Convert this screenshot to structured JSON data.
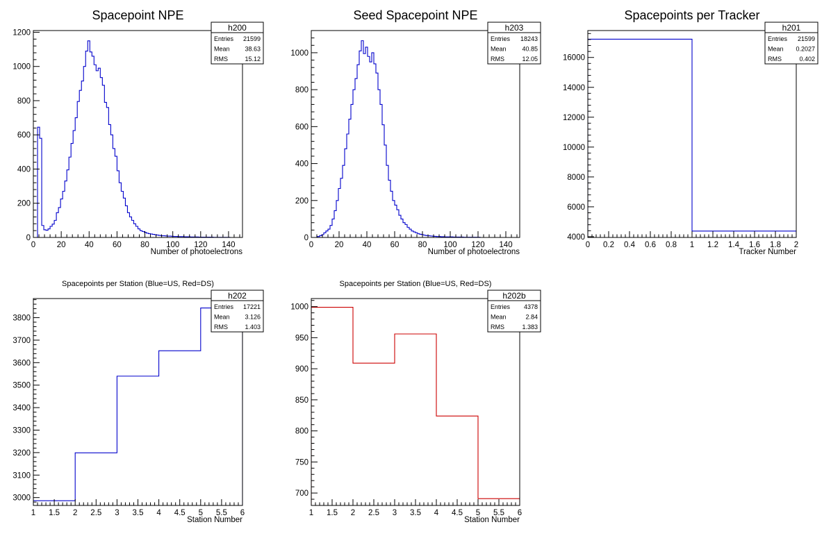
{
  "colors": {
    "blue": "#0000cc",
    "red": "#cc0000",
    "frame": "#000000",
    "background": "#ffffff"
  },
  "chart_data": [
    {
      "id": "h200",
      "type": "histogram",
      "title": "Spacepoint NPE",
      "xlabel": "Number of photoelectrons",
      "ylabel": "",
      "xlim": [
        0,
        150
      ],
      "ylim": [
        0,
        1210
      ],
      "xticks": [
        0,
        20,
        40,
        60,
        80,
        100,
        120,
        140
      ],
      "xtick_labels": [
        "0",
        "20",
        "40",
        "60",
        "80",
        "100",
        "120",
        "140"
      ],
      "yticks": [
        0,
        200,
        400,
        600,
        800,
        1000,
        1200
      ],
      "ytick_labels": [
        "0",
        "200",
        "400",
        "600",
        "800",
        "1000",
        "1200"
      ],
      "color": "#0000cc",
      "bin_width": 1.5,
      "bin_start": 3,
      "values": [
        645,
        580,
        70,
        45,
        42,
        50,
        65,
        78,
        100,
        145,
        175,
        225,
        270,
        330,
        395,
        470,
        550,
        625,
        700,
        795,
        860,
        915,
        1000,
        1090,
        1150,
        1085,
        1060,
        1010,
        975,
        990,
        935,
        890,
        790,
        760,
        660,
        600,
        520,
        475,
        390,
        320,
        270,
        230,
        185,
        145,
        120,
        100,
        80,
        65,
        50,
        40,
        35,
        30,
        25,
        22,
        20,
        18,
        16,
        14,
        12,
        10,
        10,
        9,
        8,
        8,
        7,
        6,
        6,
        5,
        5,
        5,
        4,
        4,
        4,
        3,
        3,
        3,
        3,
        2,
        2,
        2,
        2,
        2,
        2,
        2,
        1,
        1,
        1,
        1,
        1,
        1,
        1,
        1,
        0,
        0
      ],
      "stats": {
        "name": "h200",
        "rows": [
          [
            "Entries",
            "21599"
          ],
          [
            "Mean",
            "38.63"
          ],
          [
            "RMS",
            "15.12"
          ]
        ]
      }
    },
    {
      "id": "h203",
      "type": "histogram",
      "title": "Seed Spacepoint NPE",
      "xlabel": "Number of photoelectrons",
      "ylabel": "",
      "xlim": [
        0,
        150
      ],
      "ylim": [
        0,
        1120
      ],
      "xticks": [
        0,
        20,
        40,
        60,
        80,
        100,
        120,
        140
      ],
      "xtick_labels": [
        "0",
        "20",
        "40",
        "60",
        "80",
        "100",
        "120",
        "140"
      ],
      "yticks": [
        0,
        200,
        400,
        600,
        800,
        1000
      ],
      "ytick_labels": [
        "0",
        "200",
        "400",
        "600",
        "800",
        "1000"
      ],
      "color": "#0000cc",
      "bin_width": 1.5,
      "bin_start": 4.5,
      "values": [
        5,
        10,
        15,
        25,
        35,
        45,
        65,
        100,
        145,
        200,
        265,
        320,
        390,
        480,
        560,
        640,
        720,
        800,
        860,
        935,
        1010,
        1065,
        995,
        1030,
        980,
        950,
        1000,
        940,
        890,
        800,
        720,
        610,
        500,
        390,
        310,
        250,
        200,
        175,
        150,
        120,
        100,
        80,
        70,
        55,
        45,
        35,
        30,
        25,
        20,
        17,
        15,
        12,
        10,
        9,
        8,
        7,
        6,
        5,
        5,
        4,
        4,
        3,
        3,
        3,
        3,
        2,
        2,
        2,
        2,
        2,
        1,
        1,
        1,
        1,
        1,
        1,
        1,
        1,
        0,
        0
      ],
      "stats": {
        "name": "h203",
        "rows": [
          [
            "Entries",
            "18243"
          ],
          [
            "Mean",
            "40.85"
          ],
          [
            "RMS",
            "12.05"
          ]
        ]
      }
    },
    {
      "id": "h201",
      "type": "histogram",
      "title": "Spacepoints per Tracker",
      "xlabel": "Tracker Number",
      "ylabel": "",
      "xlim": [
        0,
        2
      ],
      "ylim": [
        3950,
        17800
      ],
      "xticks": [
        0,
        0.2,
        0.4,
        0.6,
        0.8,
        1,
        1.2,
        1.4,
        1.6,
        1.8,
        2
      ],
      "xtick_labels": [
        "0",
        "0.2",
        "0.4",
        "0.6",
        "0.8",
        "1",
        "1.2",
        "1.4",
        "1.6",
        "1.8",
        "2"
      ],
      "yticks": [
        4000,
        6000,
        8000,
        10000,
        12000,
        14000,
        16000
      ],
      "ytick_labels": [
        "4000",
        "6000",
        "8000",
        "10000",
        "12000",
        "14000",
        "16000"
      ],
      "color": "#0000cc",
      "bin_width": 1,
      "bin_start": 0,
      "values": [
        17221,
        4378
      ],
      "stats": {
        "name": "h201",
        "rows": [
          [
            "Entries",
            "21599"
          ],
          [
            "Mean",
            "0.2027"
          ],
          [
            "RMS",
            "0.402"
          ]
        ]
      }
    },
    {
      "id": "h202",
      "type": "histogram",
      "title": "Spacepoints per Station (Blue=US, Red=DS)",
      "xlabel": "Station Number",
      "ylabel": "",
      "xlim": [
        1,
        6
      ],
      "ylim": [
        2965,
        3885
      ],
      "xticks": [
        1,
        1.5,
        2,
        2.5,
        3,
        3.5,
        4,
        4.5,
        5,
        5.5,
        6
      ],
      "xtick_labels": [
        "1",
        "1.5",
        "2",
        "2.5",
        "3",
        "3.5",
        "4",
        "4.5",
        "5",
        "5.5",
        "6"
      ],
      "yticks": [
        3000,
        3100,
        3200,
        3300,
        3400,
        3500,
        3600,
        3700,
        3800
      ],
      "ytick_labels": [
        "3000",
        "3100",
        "3200",
        "3300",
        "3400",
        "3500",
        "3600",
        "3700",
        "3800"
      ],
      "color": "#0000cc",
      "bin_width": 1,
      "bin_start": 1,
      "values": [
        2986,
        3199,
        3540,
        3653,
        3843
      ],
      "stats": {
        "name": "h202",
        "rows": [
          [
            "Entries",
            "17221"
          ],
          [
            "Mean",
            "3.126"
          ],
          [
            "RMS",
            "1.403"
          ]
        ]
      }
    },
    {
      "id": "h202b",
      "type": "histogram",
      "title": "Spacepoints per Station (Blue=US, Red=DS)",
      "xlabel": "Station Number",
      "ylabel": "",
      "xlim": [
        1,
        6
      ],
      "ylim": [
        680,
        1013
      ],
      "xticks": [
        1,
        1.5,
        2,
        2.5,
        3,
        3.5,
        4,
        4.5,
        5,
        5.5,
        6
      ],
      "xtick_labels": [
        "1",
        "1.5",
        "2",
        "2.5",
        "3",
        "3.5",
        "4",
        "4.5",
        "5",
        "5.5",
        "6"
      ],
      "yticks": [
        700,
        750,
        800,
        850,
        900,
        950,
        1000
      ],
      "ytick_labels": [
        "700",
        "750",
        "800",
        "850",
        "900",
        "950",
        "1000"
      ],
      "color": "#cc0000",
      "bin_width": 1,
      "bin_start": 1,
      "values": [
        999,
        909,
        956,
        824,
        691
      ],
      "stats": {
        "name": "h202b",
        "rows": [
          [
            "Entries",
            "4378"
          ],
          [
            "Mean",
            "2.84"
          ],
          [
            "RMS",
            "1.383"
          ]
        ]
      }
    }
  ]
}
